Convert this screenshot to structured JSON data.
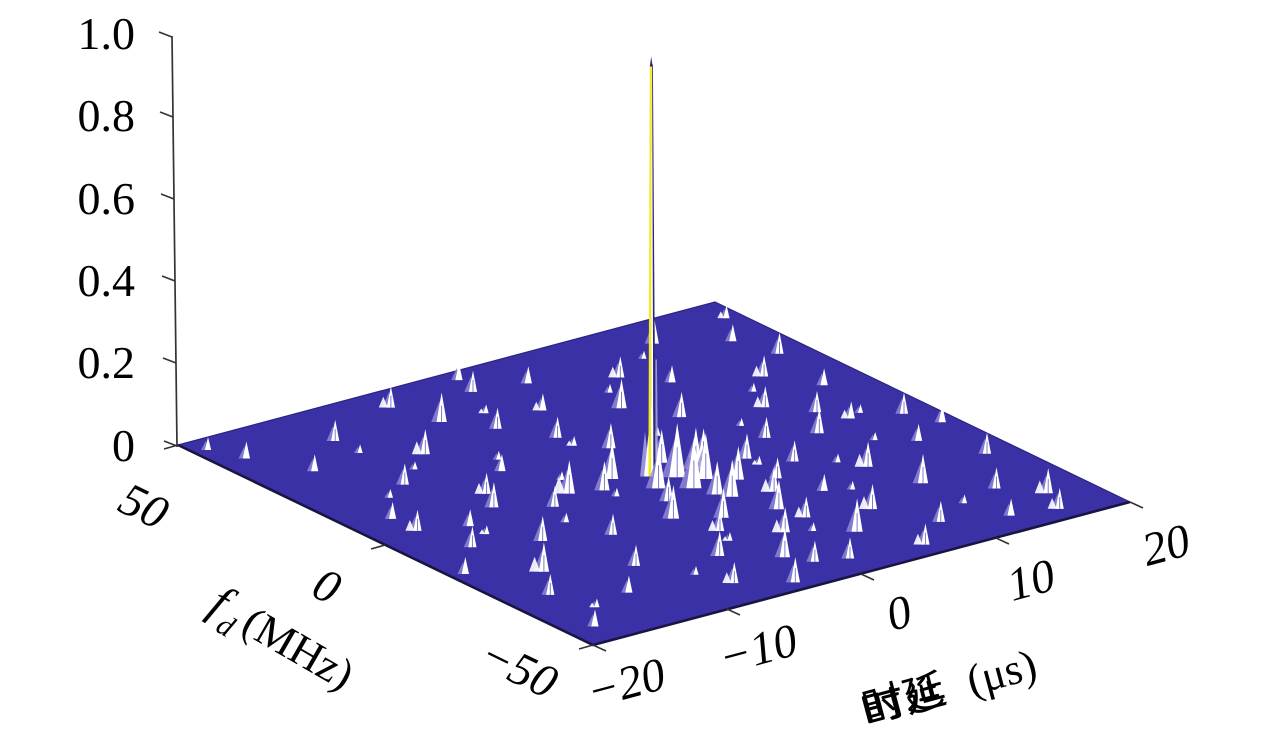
{
  "figure": {
    "background": "#ffffff"
  },
  "axes": {
    "z": {
      "ticks": [
        "1.0",
        "0.8",
        "0.6",
        "0.4",
        "0.2",
        "0"
      ]
    },
    "fd": {
      "ticks": [
        "50",
        "0",
        "−50"
      ],
      "symbol": "f",
      "subscript": "d",
      "unit": "(MHz)"
    },
    "delay": {
      "ticks": [
        "−20",
        "−10",
        "0",
        "10",
        "20"
      ],
      "cjk": "时延",
      "unit": "(μs)"
    }
  },
  "colors": {
    "surface": "#3a31a7",
    "surface_edge_front": "#191540",
    "surface_edge_back": "#2b2480",
    "spike_white": "#ffffff",
    "spike_shadow": "#938dd8",
    "peak_yellow": "#f2e920",
    "peak_dark": "#2d2878",
    "peak_light": "#aaa5e2",
    "axis": "#1a1a1a"
  },
  "chart_data": {
    "type": "surface",
    "subtype": "3d-mesh-ambiguity-function",
    "title": "",
    "xlabel": "时延 (μs)",
    "ylabel": "f_d (MHz)",
    "zlabel": "",
    "x_range": [
      -20,
      20
    ],
    "y_range": [
      -50,
      50
    ],
    "z_range": [
      0,
      1
    ],
    "x_ticks": [
      "−20",
      "−10",
      "0",
      "10",
      "20"
    ],
    "y_ticks": [
      "50",
      "0",
      "−50"
    ],
    "z_ticks": [
      "1.0",
      "0.8",
      "0.6",
      "0.4",
      "0.2",
      "0"
    ],
    "grid": false,
    "legend": false,
    "main_peak": {
      "tau_us": 0,
      "fd_mhz": 0,
      "amplitude": 1.0
    },
    "sidelobes_tau_fd_amp": [
      [
        -17,
        2,
        0.05
      ],
      [
        -14,
        -1,
        0.04
      ],
      [
        -11,
        3,
        0.06
      ],
      [
        -8,
        -2,
        0.05
      ],
      [
        -6,
        1,
        0.08
      ],
      [
        -4,
        -1,
        0.07
      ],
      [
        -2.5,
        2,
        0.09
      ],
      [
        2.5,
        -2,
        0.1
      ],
      [
        4,
        1,
        0.07
      ],
      [
        6,
        -3,
        0.06
      ],
      [
        9,
        2,
        0.05
      ],
      [
        12,
        -1,
        0.06
      ],
      [
        15,
        1,
        0.04
      ],
      [
        18,
        -2,
        0.05
      ],
      [
        0.5,
        12,
        0.06
      ],
      [
        -1,
        20,
        0.05
      ],
      [
        1,
        30,
        0.04
      ],
      [
        -0.5,
        42,
        0.05
      ],
      [
        1,
        -12,
        0.08
      ],
      [
        -1,
        -20,
        0.07
      ],
      [
        0.5,
        -30,
        0.06
      ],
      [
        -1,
        -42,
        0.05
      ],
      [
        0.8,
        -3,
        0.13
      ],
      [
        -1.2,
        -5,
        0.1
      ],
      [
        1.5,
        3,
        0.08
      ],
      [
        2,
        -6,
        0.11
      ],
      [
        3.5,
        -9,
        0.08
      ],
      [
        1.5,
        -14,
        0.09
      ],
      [
        4,
        -16,
        0.06
      ],
      [
        2.5,
        -22,
        0.07
      ],
      [
        5.5,
        -12,
        0.05
      ],
      [
        6.5,
        -20,
        0.04
      ],
      [
        3,
        -27,
        0.05
      ],
      [
        0.5,
        -8,
        0.12
      ],
      [
        -2,
        -10,
        0.06
      ],
      [
        -3.5,
        -16,
        0.08
      ],
      [
        -2.5,
        -24,
        0.05
      ],
      [
        -12,
        38,
        0.05
      ],
      [
        -5,
        35,
        0.07
      ],
      [
        3,
        40,
        0.04
      ],
      [
        8,
        34,
        0.05
      ],
      [
        13,
        42,
        0.06
      ],
      [
        17,
        36,
        0.04
      ],
      [
        -16,
        30,
        0.04
      ],
      [
        -9,
        26,
        0.06
      ],
      [
        -3,
        28,
        0.05
      ],
      [
        5,
        24,
        0.07
      ],
      [
        10,
        28,
        0.04
      ],
      [
        15,
        22,
        0.05
      ],
      [
        -13,
        18,
        0.05
      ],
      [
        -7,
        14,
        0.04
      ],
      [
        7,
        16,
        0.06
      ],
      [
        12,
        12,
        0.05
      ],
      [
        17,
        14,
        0.04
      ],
      [
        -17,
        8,
        0.04
      ],
      [
        14,
        6,
        0.05
      ],
      [
        -10,
        8,
        0.05
      ],
      [
        18,
        28,
        0.05
      ],
      [
        -18,
        40,
        0.04
      ],
      [
        0,
        47,
        0.04
      ],
      [
        -6,
        44,
        0.05
      ],
      [
        -16,
        -8,
        0.05
      ],
      [
        -12,
        -12,
        0.06
      ],
      [
        -8,
        -16,
        0.05
      ],
      [
        -15,
        -22,
        0.07
      ],
      [
        -10,
        -28,
        0.05
      ],
      [
        -5,
        -32,
        0.06
      ],
      [
        -13,
        -36,
        0.04
      ],
      [
        -7,
        -42,
        0.05
      ],
      [
        -2,
        -38,
        0.07
      ],
      [
        1,
        -44,
        0.05
      ],
      [
        4,
        -36,
        0.08
      ],
      [
        7,
        -30,
        0.06
      ],
      [
        9,
        -40,
        0.05
      ],
      [
        12,
        -26,
        0.07
      ],
      [
        15,
        -34,
        0.05
      ],
      [
        11,
        -16,
        0.06
      ],
      [
        16,
        -12,
        0.04
      ],
      [
        18,
        -22,
        0.05
      ],
      [
        13,
        -44,
        0.04
      ],
      [
        6,
        -46,
        0.05
      ],
      [
        -17,
        -30,
        0.05
      ],
      [
        -18,
        -44,
        0.04
      ],
      [
        -4,
        -47,
        0.06
      ],
      [
        17,
        -40,
        0.06
      ],
      [
        19,
        -8,
        0.04
      ],
      [
        8,
        -8,
        0.05
      ],
      [
        -19,
        -16,
        0.04
      ],
      [
        16,
        -46,
        0.05
      ],
      [
        -15,
        15,
        0.02
      ],
      [
        -11,
        22,
        0.018
      ],
      [
        -6,
        18,
        0.02
      ],
      [
        -1,
        16,
        0.022
      ],
      [
        4,
        12,
        0.02
      ],
      [
        9,
        8,
        0.018
      ],
      [
        13,
        18,
        0.02
      ],
      [
        -14,
        -5,
        0.02
      ],
      [
        -9,
        -8,
        0.022
      ],
      [
        -4,
        -4,
        0.02
      ],
      [
        1.8,
        -4,
        0.025
      ],
      [
        6,
        -6,
        0.02
      ],
      [
        10,
        -12,
        0.02
      ],
      [
        14,
        -8,
        0.018
      ],
      [
        -12,
        32,
        0.02
      ],
      [
        -2,
        34,
        0.02
      ],
      [
        6,
        30,
        0.02
      ],
      [
        11,
        38,
        0.018
      ],
      [
        -8,
        -36,
        0.02
      ],
      [
        -3,
        -28,
        0.02
      ],
      [
        2,
        -32,
        0.02
      ],
      [
        8,
        -22,
        0.02
      ],
      [
        12,
        -36,
        0.02
      ],
      [
        -16,
        -38,
        0.02
      ],
      [
        16,
        2,
        0.02
      ],
      [
        2,
        6,
        0.025
      ],
      [
        -5,
        6,
        0.02
      ],
      [
        19,
        44,
        0.03
      ],
      [
        -19,
        46,
        0.03
      ]
    ]
  }
}
